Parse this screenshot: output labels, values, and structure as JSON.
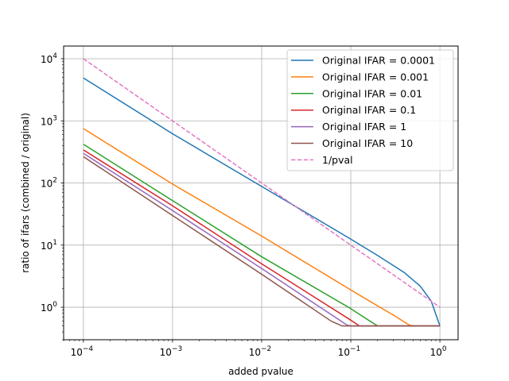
{
  "chart_data": {
    "type": "line",
    "xlabel": "added pvalue",
    "ylabel": "ratio of ifars (combined / original)",
    "xscale": "log",
    "yscale": "log",
    "xlim": [
      6e-05,
      1.6
    ],
    "ylim": [
      0.3,
      16000
    ],
    "grid": true,
    "legend_position": "top-right",
    "x_ticks": [
      {
        "value": 0.0001,
        "base": "10",
        "exp": "−4"
      },
      {
        "value": 0.001,
        "base": "10",
        "exp": "−3"
      },
      {
        "value": 0.01,
        "base": "10",
        "exp": "−2"
      },
      {
        "value": 0.1,
        "base": "10",
        "exp": "−1"
      },
      {
        "value": 1,
        "base": "10",
        "exp": "0"
      }
    ],
    "y_ticks": [
      {
        "value": 1,
        "base": "10",
        "exp": "0"
      },
      {
        "value": 10,
        "base": "10",
        "exp": "1"
      },
      {
        "value": 100,
        "base": "10",
        "exp": "2"
      },
      {
        "value": 1000,
        "base": "10",
        "exp": "3"
      },
      {
        "value": 10000,
        "base": "10",
        "exp": "4"
      }
    ],
    "series": [
      {
        "name": "Original IFAR = 0.0001",
        "color": "#1f77b4",
        "dash": false,
        "points": [
          [
            0.0001,
            4900
          ],
          [
            0.001,
            620
          ],
          [
            0.01,
            88
          ],
          [
            0.1,
            12.5
          ],
          [
            0.2,
            6.8
          ],
          [
            0.4,
            3.6
          ],
          [
            0.6,
            2.2
          ],
          [
            0.8,
            1.25
          ],
          [
            1.0,
            0.5
          ]
        ]
      },
      {
        "name": "Original IFAR = 0.001",
        "color": "#ff7f0e",
        "dash": false,
        "points": [
          [
            0.0001,
            750
          ],
          [
            0.001,
            96
          ],
          [
            0.01,
            14
          ],
          [
            0.1,
            1.9
          ],
          [
            0.2,
            1.05
          ],
          [
            0.3,
            0.75
          ],
          [
            0.45,
            0.52
          ],
          [
            0.5,
            0.5
          ],
          [
            1.0,
            0.5
          ]
        ]
      },
      {
        "name": "Original IFAR = 0.01",
        "color": "#2ca02c",
        "dash": false,
        "points": [
          [
            0.0001,
            420
          ],
          [
            0.001,
            52
          ],
          [
            0.01,
            6.5
          ],
          [
            0.1,
            0.95
          ],
          [
            0.15,
            0.65
          ],
          [
            0.2,
            0.5
          ],
          [
            1.0,
            0.5
          ]
        ]
      },
      {
        "name": "Original IFAR = 0.1",
        "color": "#d62728",
        "dash": false,
        "points": [
          [
            0.0001,
            340
          ],
          [
            0.001,
            43
          ],
          [
            0.01,
            5.0
          ],
          [
            0.1,
            0.62
          ],
          [
            0.125,
            0.5
          ],
          [
            1.0,
            0.5
          ]
        ]
      },
      {
        "name": "Original IFAR = 1",
        "color": "#9467bd",
        "dash": false,
        "points": [
          [
            0.0001,
            300
          ],
          [
            0.001,
            36
          ],
          [
            0.01,
            4.2
          ],
          [
            0.09,
            0.52
          ],
          [
            0.1,
            0.5
          ],
          [
            1.0,
            0.5
          ]
        ]
      },
      {
        "name": "Original IFAR = 10",
        "color": "#8c564b",
        "dash": false,
        "points": [
          [
            0.0001,
            265
          ],
          [
            0.001,
            30
          ],
          [
            0.01,
            3.4
          ],
          [
            0.06,
            0.6
          ],
          [
            0.08,
            0.5
          ],
          [
            1.0,
            0.5
          ]
        ]
      },
      {
        "name": "1/pval",
        "color": "#e377c2",
        "dash": true,
        "points": [
          [
            0.0001,
            10000
          ],
          [
            1.0,
            1.0
          ]
        ]
      }
    ]
  }
}
